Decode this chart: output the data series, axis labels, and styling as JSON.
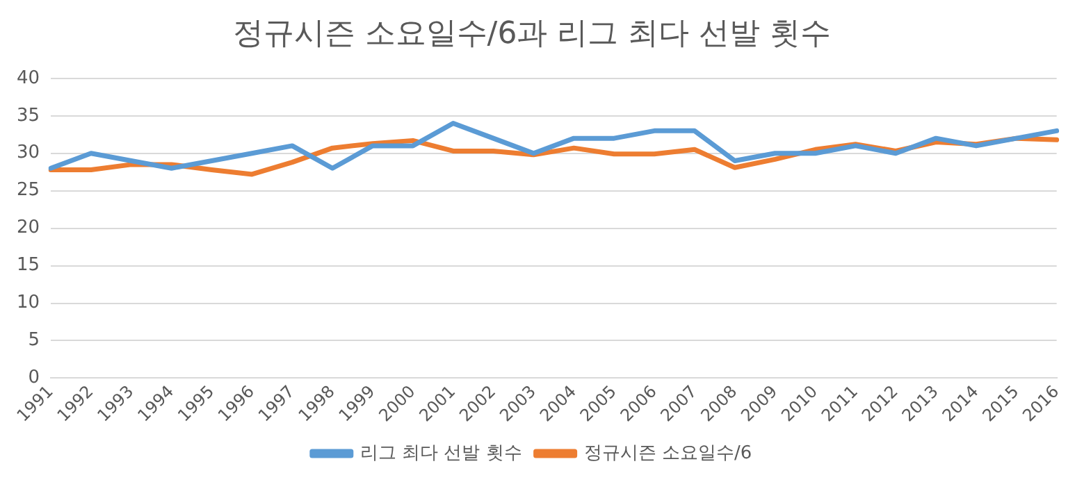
{
  "chart_data": {
    "type": "line",
    "title": "정규시즌 소요일수/6과 리그 최다 선발 횟수",
    "categories": [
      "1991",
      "1992",
      "1993",
      "1994",
      "1995",
      "1996",
      "1997",
      "1998",
      "1999",
      "2000",
      "2001",
      "2002",
      "2003",
      "2004",
      "2005",
      "2006",
      "2007",
      "2008",
      "2009",
      "2010",
      "2011",
      "2012",
      "2013",
      "2014",
      "2015",
      "2016"
    ],
    "series": [
      {
        "name": "리그 최다 선발 횟수",
        "color": "#5b9bd5",
        "values": [
          28,
          30,
          29,
          28,
          29,
          30,
          31,
          28,
          31,
          31,
          34,
          32,
          30,
          32,
          32,
          33,
          33,
          29,
          30,
          30,
          31,
          30,
          32,
          31,
          32,
          33
        ]
      },
      {
        "name": "정규시즌 소요일수/6",
        "color": "#ed7d31",
        "values": [
          27.8,
          27.8,
          28.5,
          28.5,
          27.8,
          27.2,
          28.8,
          30.7,
          31.3,
          31.7,
          30.3,
          30.3,
          29.8,
          30.7,
          29.9,
          29.9,
          30.5,
          28.1,
          29.2,
          30.5,
          31.2,
          30.3,
          31.5,
          31.2,
          32,
          31.8
        ]
      }
    ],
    "ylim": [
      0,
      40
    ],
    "yticks": [
      0,
      5,
      10,
      15,
      20,
      25,
      30,
      35,
      40
    ],
    "grid": "y",
    "legend": "bottom",
    "marker": "none",
    "line_style": "solid"
  }
}
